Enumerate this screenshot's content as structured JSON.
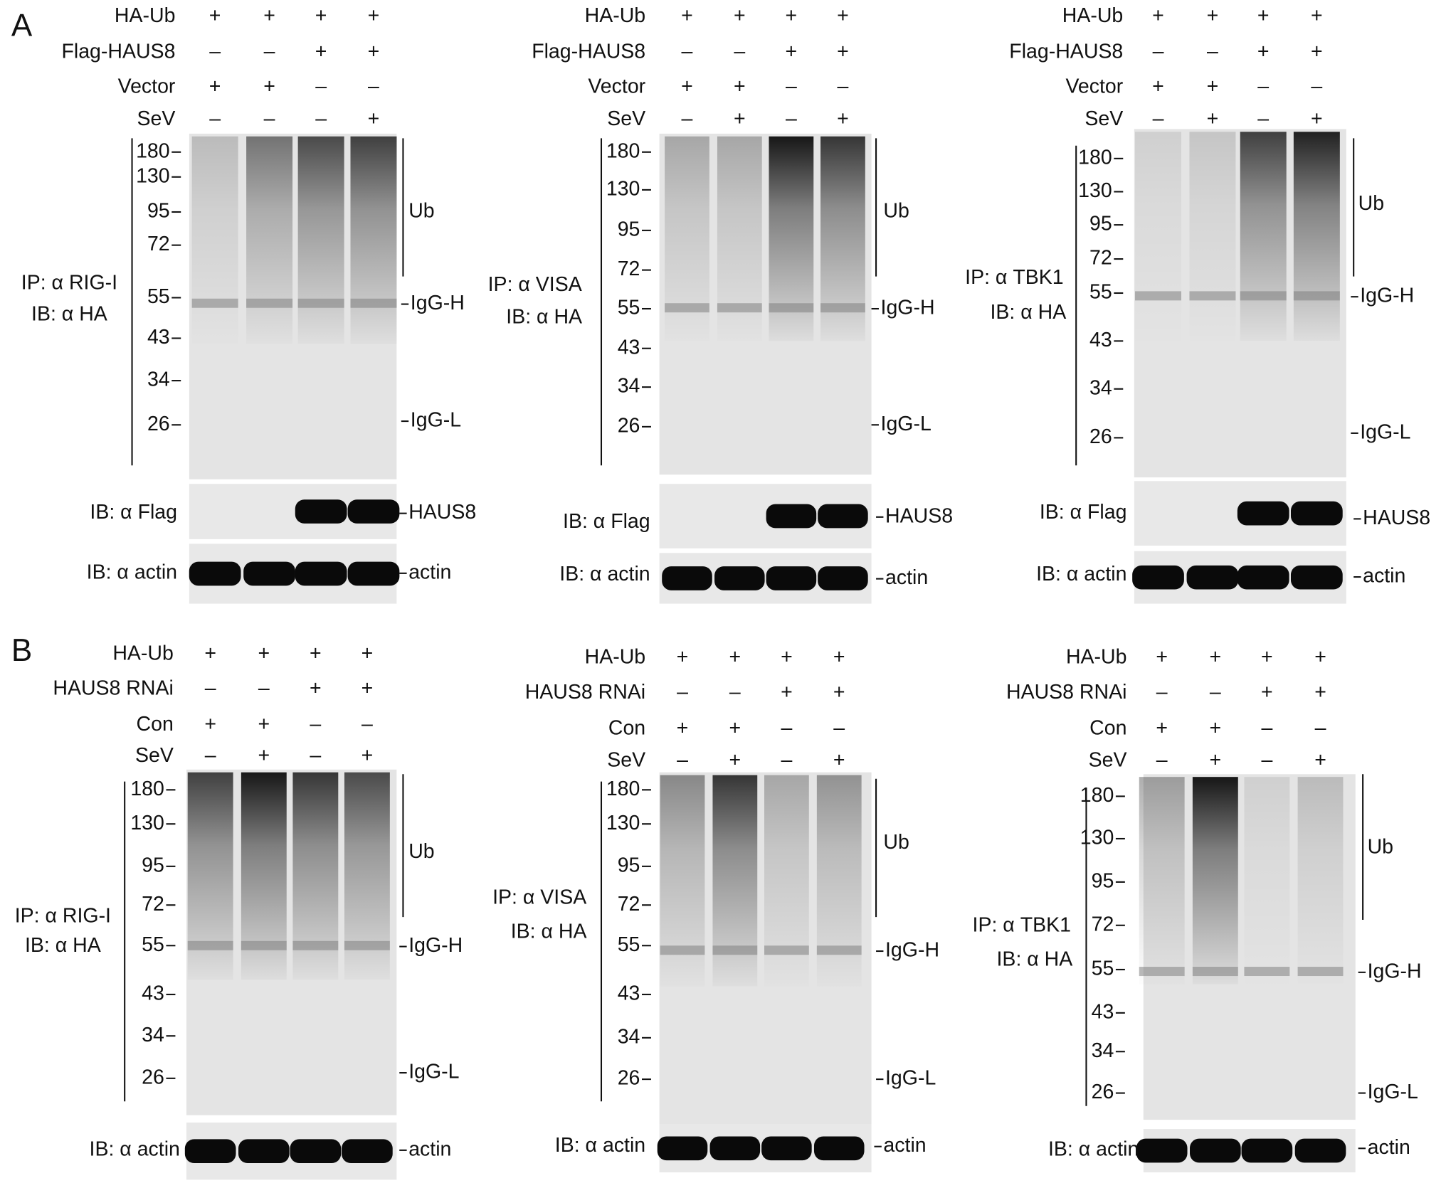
{
  "panels": [
    {
      "letter": "A",
      "blots": [
        {
          "conditions": [
            {
              "label": "HA-Ub",
              "signs": [
                "+",
                "+",
                "+",
                "+"
              ]
            },
            {
              "label": "Flag-HAUS8",
              "signs": [
                "–",
                "–",
                "+",
                "+"
              ]
            },
            {
              "label": "Vector",
              "signs": [
                "+",
                "+",
                "–",
                "–"
              ]
            },
            {
              "label": "SeV",
              "signs": [
                "–",
                "–",
                "–",
                "+"
              ]
            }
          ],
          "ip_label": "IP: α RIG-I",
          "ib_label": "IB: α HA",
          "markers": [
            180,
            130,
            95,
            72,
            55,
            43,
            34,
            26
          ],
          "bands": [
            "Ub",
            "IgG-H",
            "IgG-L"
          ],
          "flag": {
            "ib_label": "IB: α Flag",
            "band": "HAUS8"
          },
          "actin": {
            "ib_label": "IB: α actin",
            "band": "actin"
          }
        },
        {
          "conditions": [
            {
              "label": "HA-Ub",
              "signs": [
                "+",
                "+",
                "+",
                "+"
              ]
            },
            {
              "label": "Flag-HAUS8",
              "signs": [
                "–",
                "–",
                "+",
                "+"
              ]
            },
            {
              "label": "Vector",
              "signs": [
                "+",
                "+",
                "–",
                "–"
              ]
            },
            {
              "label": "SeV",
              "signs": [
                "–",
                "+",
                "–",
                "+"
              ]
            }
          ],
          "ip_label": "IP: α VISA",
          "ib_label": "IB: α HA",
          "markers": [
            180,
            130,
            95,
            72,
            55,
            43,
            34,
            26
          ],
          "bands": [
            "Ub",
            "IgG-H",
            "IgG-L"
          ],
          "flag": {
            "ib_label": "IB: α Flag",
            "band": "HAUS8"
          },
          "actin": {
            "ib_label": "IB: α actin",
            "band": "actin"
          }
        },
        {
          "conditions": [
            {
              "label": "HA-Ub",
              "signs": [
                "+",
                "+",
                "+",
                "+"
              ]
            },
            {
              "label": "Flag-HAUS8",
              "signs": [
                "–",
                "–",
                "+",
                "+"
              ]
            },
            {
              "label": "Vector",
              "signs": [
                "+",
                "+",
                "–",
                "–"
              ]
            },
            {
              "label": "SeV",
              "signs": [
                "–",
                "+",
                "–",
                "+"
              ]
            }
          ],
          "ip_label": "IP: α TBK1",
          "ib_label": "IB: α HA",
          "markers": [
            180,
            130,
            95,
            72,
            55,
            43,
            34,
            26
          ],
          "bands": [
            "Ub",
            "IgG-H",
            "IgG-L"
          ],
          "flag": {
            "ib_label": "IB: α Flag",
            "band": "HAUS8"
          },
          "actin": {
            "ib_label": "IB: α actin",
            "band": "actin"
          }
        }
      ]
    },
    {
      "letter": "B",
      "blots": [
        {
          "conditions": [
            {
              "label": "HA-Ub",
              "signs": [
                "+",
                "+",
                "+",
                "+"
              ]
            },
            {
              "label": "HAUS8 RNAi",
              "signs": [
                "–",
                "–",
                "+",
                "+"
              ]
            },
            {
              "label": "Con",
              "signs": [
                "+",
                "+",
                "–",
                "–"
              ]
            },
            {
              "label": "SeV",
              "signs": [
                "–",
                "+",
                "–",
                "+"
              ]
            }
          ],
          "ip_label": "IP: α RIG-I",
          "ib_label": "IB: α HA",
          "markers": [
            180,
            130,
            95,
            72,
            55,
            43,
            34,
            26
          ],
          "bands": [
            "Ub",
            "IgG-H",
            "IgG-L"
          ],
          "actin": {
            "ib_label": "IB: α actin",
            "band": "actin"
          }
        },
        {
          "conditions": [
            {
              "label": "HA-Ub",
              "signs": [
                "+",
                "+",
                "+",
                "+"
              ]
            },
            {
              "label": "HAUS8 RNAi",
              "signs": [
                "–",
                "–",
                "+",
                "+"
              ]
            },
            {
              "label": "Con",
              "signs": [
                "+",
                "+",
                "–",
                "–"
              ]
            },
            {
              "label": "SeV",
              "signs": [
                "–",
                "+",
                "–",
                "+"
              ]
            }
          ],
          "ip_label": "IP: α VISA",
          "ib_label": "IB: α HA",
          "markers": [
            180,
            130,
            95,
            72,
            55,
            43,
            34,
            26
          ],
          "bands": [
            "Ub",
            "IgG-H",
            "IgG-L"
          ],
          "actin": {
            "ib_label": "IB: α actin",
            "band": "actin"
          }
        },
        {
          "conditions": [
            {
              "label": "HA-Ub",
              "signs": [
                "+",
                "+",
                "+",
                "+"
              ]
            },
            {
              "label": "HAUS8 RNAi",
              "signs": [
                "–",
                "–",
                "+",
                "+"
              ]
            },
            {
              "label": "Con",
              "signs": [
                "+",
                "+",
                "–",
                "–"
              ]
            },
            {
              "label": "SeV",
              "signs": [
                "–",
                "+",
                "–",
                "+"
              ]
            }
          ],
          "ip_label": "IP: α TBK1",
          "ib_label": "IB: α HA",
          "markers": [
            180,
            130,
            95,
            72,
            55,
            43,
            34,
            26
          ],
          "bands": [
            "Ub",
            "IgG-H",
            "IgG-L"
          ],
          "actin": {
            "ib_label": "IB: α actin",
            "band": "actin"
          }
        }
      ]
    }
  ]
}
